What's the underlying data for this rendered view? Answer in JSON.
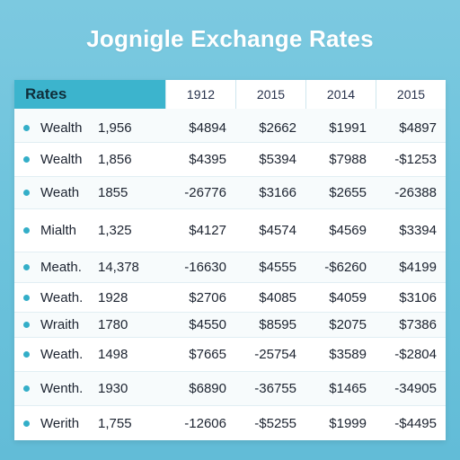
{
  "title": "Jognigle Exchange Rates",
  "colors": {
    "background": "#6cc3dc",
    "header_accent": "#3cb4cd",
    "bullet": "#33aec8"
  },
  "table": {
    "header_label": "Rates",
    "year_headers": [
      "1912",
      "2015",
      "2014",
      "2015"
    ],
    "rows": [
      {
        "name": "Wealth",
        "number": "1,956",
        "values": [
          "$4894",
          "$2662",
          "$1991",
          "$4897"
        ]
      },
      {
        "name": "Wealth",
        "number": "1,856",
        "values": [
          "$4395",
          "$5394",
          "$7988",
          "-$1253"
        ]
      },
      {
        "name": "Weath",
        "number": "1855",
        "values": [
          "-26776",
          "$3166",
          "$2655",
          "-26388"
        ]
      },
      {
        "name": "Mialth",
        "number": "1,325",
        "values": [
          "$4127",
          "$4574",
          "$4569",
          "$3394"
        ]
      },
      {
        "name": "Meath.",
        "number": "14,378",
        "values": [
          "-16630",
          "$4555",
          "-$6260",
          "$4199"
        ]
      },
      {
        "name": "Weath.",
        "number": "1928",
        "values": [
          "$2706",
          "$4085",
          "$4059",
          "$3106"
        ]
      },
      {
        "name": "Wraith",
        "number": "1780",
        "values": [
          "$4550",
          "$8595",
          "$2075",
          "$7386"
        ]
      },
      {
        "name": "Weath.",
        "number": "1498",
        "values": [
          "$7665",
          "-25754",
          "$3589",
          "-$2804"
        ]
      },
      {
        "name": "Wenth.",
        "number": "1930",
        "values": [
          "$6890",
          "-36755",
          "$1465",
          "-34905"
        ]
      },
      {
        "name": "Werith",
        "number": "1,755",
        "values": [
          "-12606",
          "-$5255",
          "$1999",
          "-$4495"
        ]
      }
    ]
  }
}
